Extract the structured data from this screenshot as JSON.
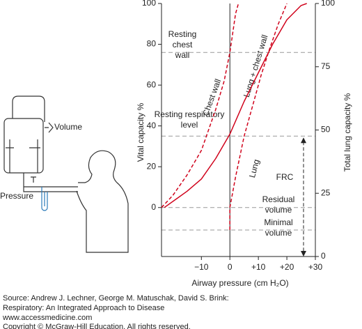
{
  "chart_data": {
    "type": "line",
    "x_label": "Airway pressure (cm H₂O)",
    "y_label": "Vital capacity %",
    "y2_label": "Total lung capacity %",
    "xlim": [
      -24,
      30
    ],
    "xticks": [
      {
        "value": -10,
        "label": "−10"
      },
      0,
      {
        "value": 10,
        "label": "+10"
      },
      {
        "value": 20,
        "label": "+20"
      },
      {
        "value": 30,
        "label": "+30"
      }
    ],
    "ylim": [
      -24,
      100
    ],
    "yticks": [
      0,
      20,
      40,
      60,
      80,
      100
    ],
    "y2lim": [
      0,
      100
    ],
    "y2ticks": [
      0,
      25,
      50,
      75,
      100
    ],
    "series": [
      {
        "name": "Chest wall",
        "color": "#d0021b",
        "dashed": true,
        "x": [
          -24,
          -20,
          -15,
          -10,
          -5,
          -2,
          0,
          2,
          3
        ],
        "values": [
          0,
          6,
          16,
          28,
          48,
          62,
          76,
          95,
          100
        ]
      },
      {
        "name": "Lung + chest wall",
        "color": "#d0021b",
        "dashed": false,
        "x": [
          -23,
          -15,
          -10,
          -5,
          0,
          5,
          10,
          15,
          20,
          25,
          27
        ],
        "values": [
          0,
          8,
          14,
          24,
          36,
          52,
          66,
          80,
          92,
          99,
          100
        ]
      },
      {
        "name": "Lung",
        "color": "#d0021b",
        "dashed": true,
        "x": [
          0,
          0,
          2,
          5,
          8,
          11,
          14,
          17,
          20
        ],
        "values": [
          -11,
          0,
          15,
          35,
          50,
          65,
          78,
          90,
          100
        ]
      }
    ],
    "reference_lines": [
      {
        "value": 76,
        "label": "Resting chest wall"
      },
      {
        "value": 35,
        "label": "Resting respiratory level"
      },
      {
        "value": 0,
        "label": "Residual volume"
      },
      {
        "value": -11,
        "label": "Minimal volume"
      }
    ],
    "frc_label": "FRC",
    "apparatus_labels": [
      "Volume",
      "Pressure"
    ],
    "source": [
      "Source: Andrew J. Lechner, George M. Matuschak, David S. Brink:",
      "Respiratory: An Integrated Approach to Disease",
      "www.accessmedicine.com",
      "Copyright © McGraw-Hill Education.  All rights reserved."
    ]
  }
}
